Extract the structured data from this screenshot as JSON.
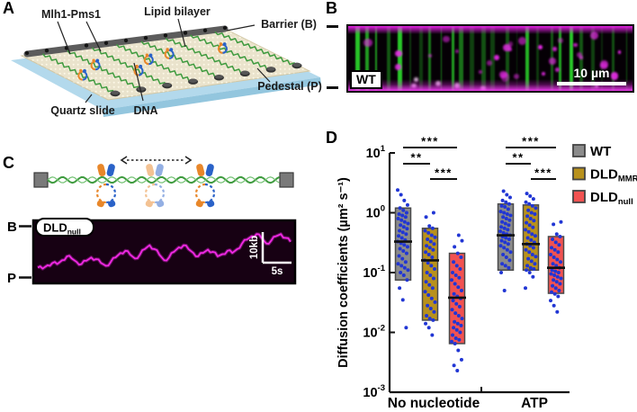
{
  "figure": {
    "panels": {
      "A": {
        "letter": "A",
        "labels": {
          "mlh1": "Mlh1-Pms1",
          "lipid": "Lipid bilayer",
          "barrier": "Barrier (B)",
          "pedestal": "Pedestal (P)",
          "quartz": "Quartz slide",
          "dna": "DNA"
        }
      },
      "B": {
        "letter": "B",
        "condition": "WT",
        "scalebar": "10 µm"
      },
      "C": {
        "letter": "C",
        "kymo_label_main": "DLD",
        "kymo_label_sub": "null",
        "axis_top": "B",
        "axis_bottom": "P",
        "scale_vertical": "10kb",
        "scale_horizontal": "5s",
        "trace": [
          0.78,
          0.8,
          0.74,
          0.7,
          0.72,
          0.65,
          0.58,
          0.62,
          0.68,
          0.72,
          0.66,
          0.6,
          0.63,
          0.7,
          0.75,
          0.68,
          0.6,
          0.52,
          0.48,
          0.55,
          0.62,
          0.55,
          0.45,
          0.38,
          0.45,
          0.55,
          0.65,
          0.6,
          0.5,
          0.42,
          0.38,
          0.45,
          0.52,
          0.58,
          0.52,
          0.46,
          0.5,
          0.58,
          0.54,
          0.48,
          0.52,
          0.45,
          0.35,
          0.28,
          0.22,
          0.18,
          0.25,
          0.35,
          0.3,
          0.22,
          0.18,
          0.25,
          0.32
        ]
      },
      "D": {
        "letter": "D"
      }
    }
  },
  "chart_data": {
    "type": "box",
    "title": "",
    "ylabel": "Diffusion coefficients (µm² s⁻¹)",
    "yscale": "log",
    "ylim": [
      0.001,
      10
    ],
    "yticks_exponents": [
      1,
      0,
      -1,
      -2,
      -3
    ],
    "categories": [
      "No nucleotide",
      "ATP"
    ],
    "legend_position": "right",
    "point_color": "#2136d4",
    "series": [
      {
        "name": "WT",
        "name_sub": "",
        "color": "#8b8b8b",
        "box": [
          {
            "low": 0.075,
            "high": 1.2,
            "median": 0.33
          },
          {
            "low": 0.11,
            "high": 1.4,
            "median": 0.42
          }
        ],
        "points": [
          [
            2.4,
            2.0,
            1.6,
            1.35,
            1.2,
            1.1,
            1.0,
            0.95,
            0.9,
            0.85,
            0.8,
            0.75,
            0.7,
            0.66,
            0.62,
            0.58,
            0.54,
            0.5,
            0.47,
            0.44,
            0.41,
            0.38,
            0.35,
            0.33,
            0.31,
            0.29,
            0.27,
            0.25,
            0.23,
            0.21,
            0.19,
            0.17,
            0.15,
            0.14,
            0.13,
            0.12,
            0.11,
            0.1,
            0.09,
            0.075,
            0.055,
            0.035,
            0.012
          ],
          [
            2.3,
            2.0,
            1.8,
            1.6,
            1.5,
            1.4,
            1.3,
            1.25,
            1.15,
            1.05,
            1.0,
            0.95,
            0.9,
            0.85,
            0.8,
            0.75,
            0.7,
            0.66,
            0.62,
            0.58,
            0.55,
            0.52,
            0.49,
            0.46,
            0.44,
            0.42,
            0.4,
            0.38,
            0.36,
            0.34,
            0.32,
            0.3,
            0.28,
            0.26,
            0.24,
            0.22,
            0.2,
            0.18,
            0.16,
            0.14,
            0.13,
            0.12,
            0.1,
            0.05
          ]
        ]
      },
      {
        "name": "DLD",
        "name_sub": "MMR",
        "color": "#b8911c",
        "box": [
          {
            "low": 0.016,
            "high": 0.55,
            "median": 0.16
          },
          {
            "low": 0.11,
            "high": 1.35,
            "median": 0.3
          }
        ],
        "points": [
          [
            1.0,
            0.85,
            0.6,
            0.55,
            0.5,
            0.46,
            0.42,
            0.39,
            0.36,
            0.33,
            0.3,
            0.28,
            0.26,
            0.24,
            0.22,
            0.2,
            0.18,
            0.16,
            0.145,
            0.13,
            0.115,
            0.1,
            0.09,
            0.08,
            0.07,
            0.062,
            0.055,
            0.048,
            0.042,
            0.037,
            0.032,
            0.028,
            0.025,
            0.022,
            0.019,
            0.017,
            0.016,
            0.014,
            0.012,
            0.009
          ],
          [
            2.1,
            1.9,
            1.7,
            1.5,
            1.4,
            1.3,
            1.2,
            1.1,
            1.0,
            0.95,
            0.88,
            0.8,
            0.74,
            0.68,
            0.62,
            0.57,
            0.52,
            0.48,
            0.44,
            0.41,
            0.38,
            0.35,
            0.32,
            0.3,
            0.28,
            0.26,
            0.24,
            0.22,
            0.2,
            0.185,
            0.17,
            0.155,
            0.14,
            0.13,
            0.12,
            0.115,
            0.11,
            0.1,
            0.085,
            0.055
          ]
        ]
      },
      {
        "name": "DLD",
        "name_sub": "null",
        "color": "#f25251",
        "box": [
          {
            "low": 0.0065,
            "high": 0.21,
            "median": 0.038
          },
          {
            "low": 0.045,
            "high": 0.4,
            "median": 0.12
          }
        ],
        "points": [
          [
            0.42,
            0.34,
            0.27,
            0.21,
            0.18,
            0.15,
            0.13,
            0.115,
            0.1,
            0.09,
            0.082,
            0.075,
            0.065,
            0.057,
            0.05,
            0.044,
            0.04,
            0.037,
            0.034,
            0.03,
            0.027,
            0.024,
            0.021,
            0.019,
            0.017,
            0.015,
            0.014,
            0.013,
            0.012,
            0.011,
            0.01,
            0.009,
            0.008,
            0.0075,
            0.007,
            0.0065,
            0.005,
            0.0035,
            0.0028,
            0.0023
          ],
          [
            0.7,
            0.64,
            0.44,
            0.4,
            0.36,
            0.32,
            0.29,
            0.26,
            0.24,
            0.22,
            0.2,
            0.18,
            0.165,
            0.15,
            0.14,
            0.13,
            0.12,
            0.11,
            0.105,
            0.1,
            0.095,
            0.09,
            0.085,
            0.08,
            0.075,
            0.07,
            0.065,
            0.06,
            0.055,
            0.05,
            0.047,
            0.044,
            0.04,
            0.034,
            0.028,
            0.022
          ]
        ]
      }
    ],
    "significance": [
      {
        "category": "No nucleotide",
        "comparisons": [
          {
            "pair": [
              0,
              2
            ],
            "label": "***"
          },
          {
            "pair": [
              0,
              1
            ],
            "label": "**"
          },
          {
            "pair": [
              1,
              2
            ],
            "label": "***"
          }
        ]
      },
      {
        "category": "ATP",
        "comparisons": [
          {
            "pair": [
              0,
              2
            ],
            "label": "***"
          },
          {
            "pair": [
              0,
              1
            ],
            "label": "**"
          },
          {
            "pair": [
              1,
              2
            ],
            "label": "***"
          }
        ]
      }
    ]
  }
}
